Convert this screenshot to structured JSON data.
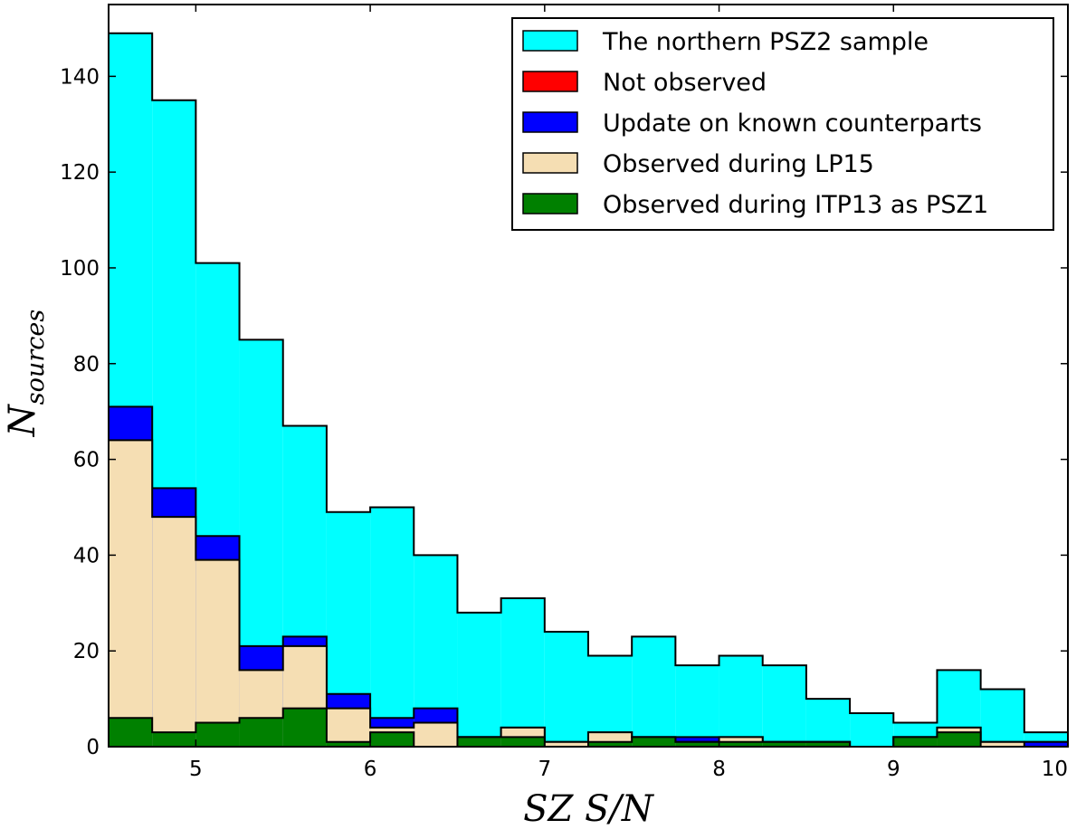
{
  "chart_data": {
    "type": "histogram-overlay",
    "xlabel": "SZ S/N",
    "ylabel_main": "N",
    "ylabel_sub": "sources",
    "xlim": [
      4.5,
      10
    ],
    "ylim": [
      0,
      155
    ],
    "xticks": [
      5,
      6,
      7,
      8,
      9,
      10
    ],
    "yticks": [
      0,
      20,
      40,
      60,
      80,
      100,
      120,
      140
    ],
    "bin_edges": [
      4.5,
      4.75,
      5.0,
      5.25,
      5.5,
      5.75,
      6.0,
      6.25,
      6.5,
      6.75,
      7.0,
      7.25,
      7.5,
      7.75,
      8.0,
      8.25,
      8.5,
      8.75,
      9.0,
      9.25,
      9.5,
      9.75,
      10.0
    ],
    "series": [
      {
        "name": "The northern PSZ2 sample",
        "color": "#00ffff",
        "values": [
          149,
          135,
          101,
          85,
          67,
          49,
          50,
          40,
          28,
          31,
          24,
          19,
          23,
          17,
          19,
          17,
          10,
          7,
          5,
          16,
          12,
          3
        ]
      },
      {
        "name": "Not observed",
        "color": "#ff0000",
        "values": [
          0,
          0,
          0,
          0,
          0,
          0,
          0,
          0,
          0,
          0,
          0,
          0,
          0,
          0,
          0,
          0,
          0,
          0,
          0,
          0,
          0,
          1
        ]
      },
      {
        "name": "Update on known counterparts",
        "color": "#0000ff",
        "values": [
          71,
          54,
          44,
          21,
          23,
          11,
          6,
          8,
          2,
          4,
          1,
          3,
          2,
          2,
          2,
          1,
          1,
          0,
          2,
          4,
          1,
          1
        ]
      },
      {
        "name": "Observed during LP15",
        "color": "#f5deb3",
        "values": [
          64,
          48,
          39,
          16,
          21,
          8,
          4,
          5,
          2,
          4,
          1,
          3,
          2,
          1,
          2,
          1,
          1,
          0,
          2,
          4,
          1,
          0
        ]
      },
      {
        "name": "Observed during ITP13 as PSZ1",
        "color": "#008000",
        "values": [
          6,
          3,
          5,
          6,
          8,
          1,
          3,
          0,
          2,
          2,
          0,
          1,
          2,
          1,
          1,
          1,
          1,
          0,
          2,
          3,
          0,
          0
        ]
      }
    ],
    "legend": {
      "position": "top-right",
      "entries": [
        "The northern PSZ2 sample",
        "Not observed",
        "Update on known counterparts",
        "Observed during LP15",
        "Observed during ITP13 as PSZ1"
      ]
    }
  }
}
